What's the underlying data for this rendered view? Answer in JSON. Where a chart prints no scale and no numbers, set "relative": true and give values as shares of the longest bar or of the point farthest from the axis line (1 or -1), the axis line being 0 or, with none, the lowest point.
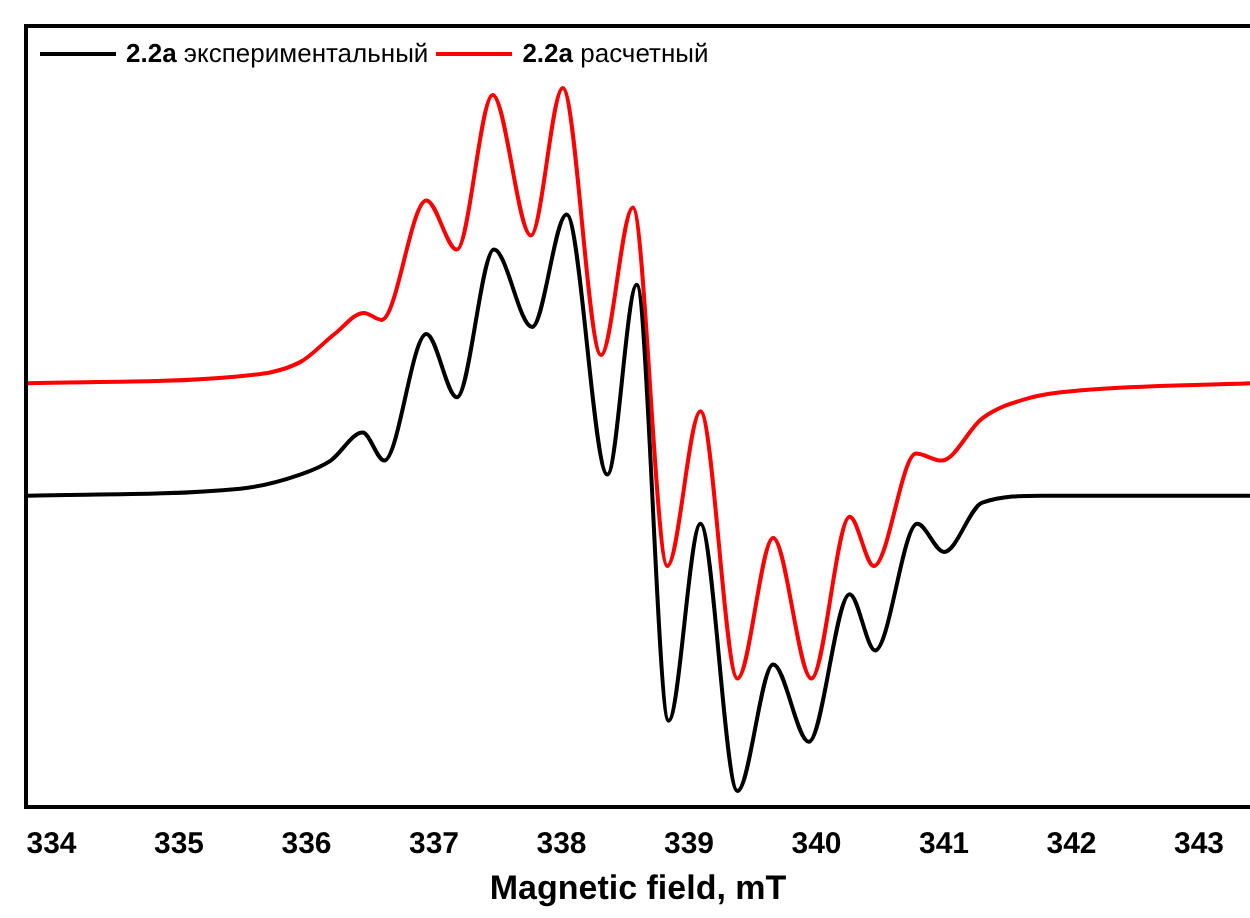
{
  "chart_data": {
    "type": "line",
    "xlabel": "Magnetic field, mT",
    "relative": true,
    "legend": "top left",
    "grid": false,
    "marker": "none",
    "line_style": "solid",
    "xlim": [
      333.8,
      343.4
    ],
    "xticks": [
      334,
      335,
      336,
      337,
      338,
      339,
      340,
      341,
      342,
      343
    ],
    "series": [
      {
        "name": "2.2a экспериментальный",
        "color": "#000000",
        "x": [
          333.81,
          335.48,
          335.95,
          336.19,
          336.44,
          336.61,
          336.94,
          337.18,
          337.47,
          337.77,
          338.04,
          338.36,
          338.59,
          338.84,
          339.09,
          339.38,
          339.66,
          339.94,
          340.26,
          340.46,
          340.79,
          341.0,
          341.3,
          341.77,
          343.4
        ],
        "values": [
          0.42,
          0.43,
          0.45,
          0.47,
          0.51,
          0.47,
          0.65,
          0.56,
          0.77,
          0.66,
          0.82,
          0.45,
          0.72,
          0.1,
          0.38,
          0,
          0.18,
          0.07,
          0.28,
          0.2,
          0.38,
          0.34,
          0.41,
          0.42,
          0.42
        ]
      },
      {
        "name": "2.2a расчетный",
        "color": "#ff0000",
        "x": [
          333.81,
          335.48,
          335.95,
          336.22,
          336.45,
          336.59,
          336.94,
          337.18,
          337.46,
          337.76,
          338.01,
          338.31,
          338.56,
          338.83,
          339.09,
          339.38,
          339.66,
          339.96,
          340.26,
          340.45,
          340.78,
          340.98,
          341.3,
          341.69,
          342.08,
          343.4
        ],
        "values": [
          0.58,
          0.59,
          0.61,
          0.65,
          0.68,
          0.67,
          0.84,
          0.77,
          0.99,
          0.79,
          1,
          0.62,
          0.83,
          0.32,
          0.54,
          0.16,
          0.36,
          0.16,
          0.39,
          0.32,
          0.48,
          0.47,
          0.53,
          0.56,
          0.57,
          0.58
        ]
      }
    ]
  }
}
